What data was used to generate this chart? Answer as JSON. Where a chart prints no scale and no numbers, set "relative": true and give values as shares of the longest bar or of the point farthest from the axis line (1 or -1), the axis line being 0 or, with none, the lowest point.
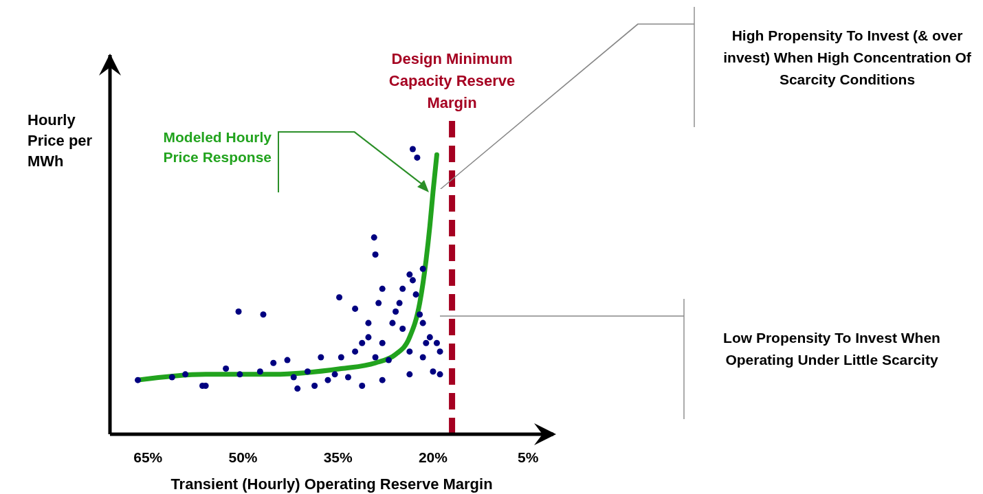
{
  "chart_data": {
    "type": "scatter",
    "relative": true,
    "xlabel": "Transient (Hourly) Operating Reserve Margin",
    "ylabel": "Hourly Price per MWh",
    "xlim": [
      71,
      1
    ],
    "xticks": [
      {
        "value": 65,
        "label": "65%"
      },
      {
        "value": 50,
        "label": "50%"
      },
      {
        "value": 35,
        "label": "35%"
      },
      {
        "value": 20,
        "label": "20%"
      },
      {
        "value": 5,
        "label": "5%"
      }
    ],
    "marker": "circle",
    "series": [
      {
        "color": "#000080",
        "x": [
          23.2,
          22.5,
          29.3,
          29.1,
          50.7,
          46.8,
          34.8,
          32.3,
          28.0,
          23.7,
          23.2,
          30.2,
          25.9,
          21.6,
          20.5,
          19.4,
          61.2,
          55.9,
          50.5,
          45.2,
          43.0,
          39.8,
          37.7,
          35.5,
          33.4,
          32.3,
          30.2,
          28.0,
          27.0,
          24.8,
          23.7,
          21.6,
          20.0,
          18.9,
          23.7,
          28.0,
          31.2,
          38.7,
          56.4,
          66.6,
          22.7,
          25.3,
          28.6,
          31.2,
          34.5,
          42.0,
          47.3,
          52.7,
          59.1,
          41.4,
          36.6,
          26.4,
          22.1,
          18.9,
          21.1,
          29.1,
          21.6,
          24.8
        ],
        "values": [
          1.0,
          0.97,
          0.69,
          0.63,
          0.43,
          0.42,
          0.48,
          0.44,
          0.51,
          0.56,
          0.54,
          0.39,
          0.43,
          0.39,
          0.34,
          0.32,
          0.2,
          0.17,
          0.21,
          0.25,
          0.26,
          0.22,
          0.27,
          0.21,
          0.2,
          0.29,
          0.34,
          0.32,
          0.26,
          0.37,
          0.29,
          0.27,
          0.22,
          0.21,
          0.21,
          0.19,
          0.17,
          0.17,
          0.17,
          0.19,
          0.49,
          0.46,
          0.46,
          0.32,
          0.27,
          0.2,
          0.22,
          0.23,
          0.21,
          0.16,
          0.19,
          0.39,
          0.42,
          0.29,
          0.32,
          0.27,
          0.58,
          0.51
        ]
      },
      {
        "type": "line",
        "name": "Modeled Hourly Price Response",
        "color": "#22a31e",
        "marker": "none",
        "x": [
          66.6,
          55.9,
          45.2,
          34.5,
          29.1,
          25.9,
          23.7,
          22.1,
          21.1,
          20.5,
          20.0,
          19.4
        ],
        "values": [
          0.19,
          0.21,
          0.21,
          0.23,
          0.25,
          0.28,
          0.34,
          0.46,
          0.61,
          0.73,
          0.85,
          0.98
        ]
      }
    ],
    "ref_lines": [
      {
        "axis": "x",
        "value": 17,
        "label": "Design Minimum Capacity Reserve Margin",
        "color": "#a50021",
        "line_style": "dashed"
      }
    ],
    "annotations": [
      "High Propensity To Invest (& over invest) When High Concentration Of Scarcity Conditions",
      "Low Propensity To Invest When Operating Under Little Scarcity"
    ]
  }
}
